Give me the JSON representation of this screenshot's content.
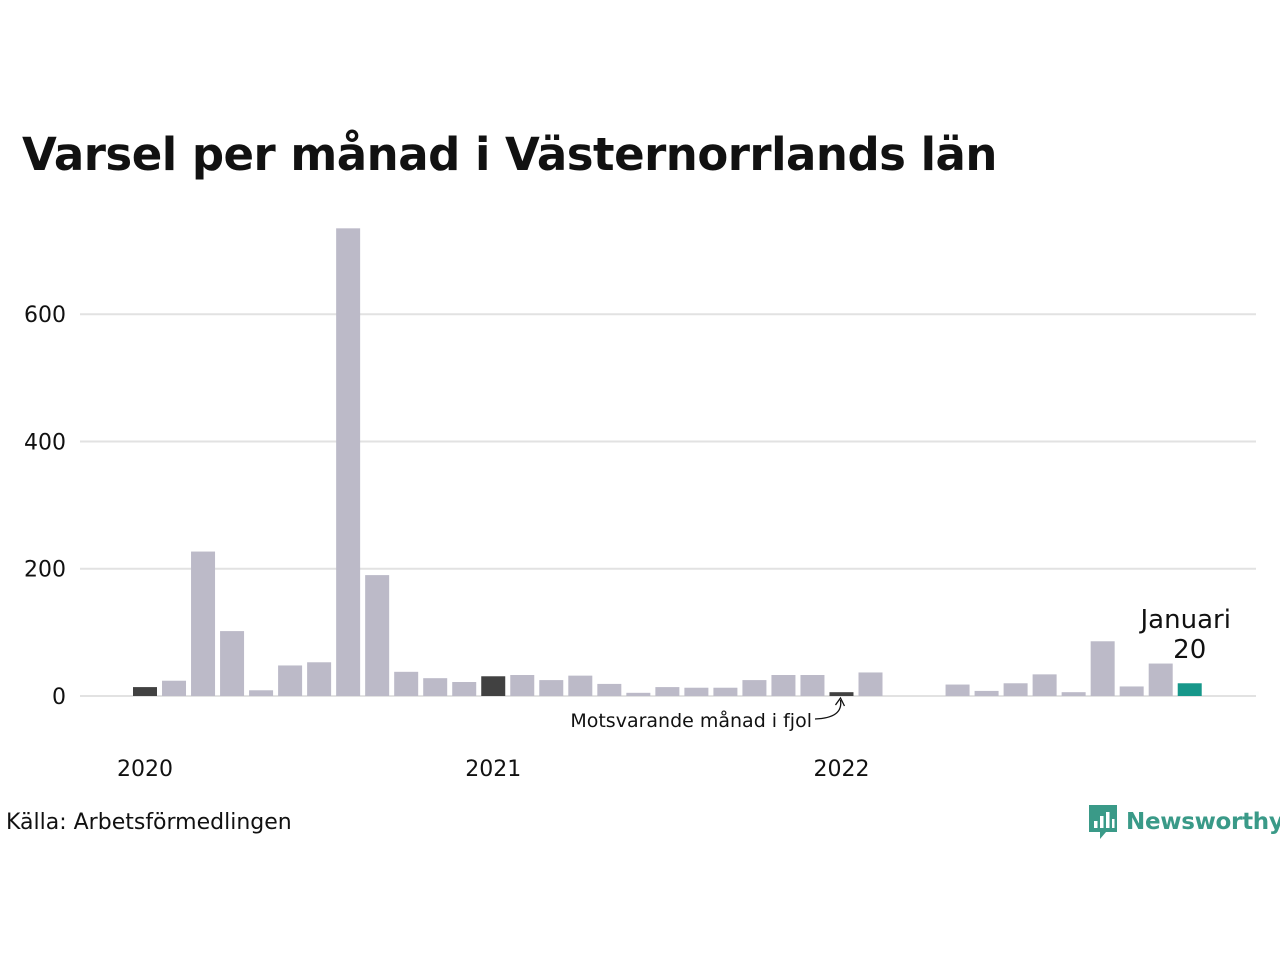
{
  "title": "Varsel per månad i Västernorrlands län",
  "source": "Källa: Arbetsförmedlingen",
  "brand": {
    "name": "Newsworthy",
    "icon": "newsworthy-logo-icon"
  },
  "colors": {
    "bar": "#bcbac8",
    "highlight": "#414141",
    "current": "#17978a",
    "grid": "#e2e2e2"
  },
  "chart_data": {
    "type": "bar",
    "x": [
      "2020-01",
      "2020-02",
      "2020-03",
      "2020-04",
      "2020-05",
      "2020-06",
      "2020-07",
      "2020-08",
      "2020-09",
      "2020-10",
      "2020-11",
      "2020-12",
      "2021-01",
      "2021-02",
      "2021-03",
      "2021-04",
      "2021-05",
      "2021-06",
      "2021-07",
      "2021-08",
      "2021-09",
      "2021-10",
      "2021-11",
      "2021-12",
      "2022-01",
      "2022-02",
      "2022-03",
      "2022-04",
      "2022-05",
      "2022-06",
      "2022-07",
      "2022-08",
      "2022-09",
      "2022-10",
      "2022-11",
      "2022-12",
      "2023-01"
    ],
    "values": [
      14,
      24,
      227,
      102,
      9,
      48,
      53,
      735,
      190,
      38,
      28,
      22,
      31,
      33,
      25,
      32,
      19,
      5,
      14,
      13,
      13,
      25,
      33,
      33,
      6,
      37,
      0,
      0,
      18,
      8,
      20,
      34,
      6,
      86,
      15,
      51,
      20
    ],
    "highlight_indices": [
      0,
      12,
      24
    ],
    "current_index": 36,
    "x_tick_labels": [
      {
        "index": 0,
        "label": "2020"
      },
      {
        "index": 12,
        "label": "2021"
      },
      {
        "index": 24,
        "label": "2022"
      }
    ],
    "y_ticks": [
      0,
      200,
      400,
      600
    ],
    "ylim": [
      0,
      740
    ],
    "grid": true,
    "annotation": {
      "text": "Motsvarande månad i fjol",
      "target_index": 24
    },
    "current_label": {
      "month": "Januari",
      "value": "20"
    }
  }
}
